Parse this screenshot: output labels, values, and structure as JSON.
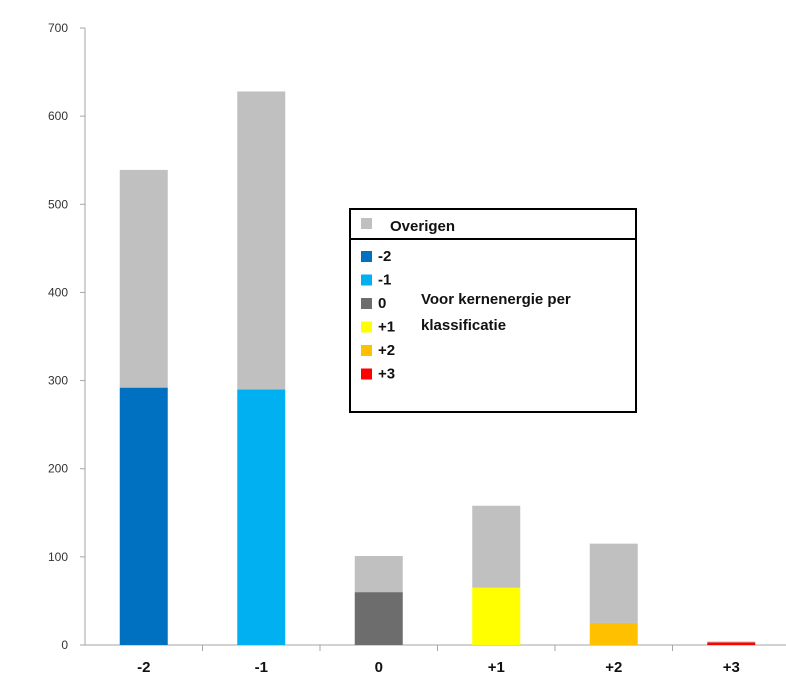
{
  "chart_data": {
    "type": "bar",
    "stacked": true,
    "categories": [
      "-2",
      "-1",
      "0",
      "+1",
      "+2",
      "+3"
    ],
    "ylim": [
      0,
      700
    ],
    "yticks": [
      "0",
      "100",
      "200",
      "300",
      "400",
      "500",
      "600",
      "700"
    ],
    "grid": false,
    "series": [
      {
        "name": "",
        "values": [
          292,
          290,
          60,
          65,
          25,
          3
        ],
        "colors": [
          "#0070c0",
          "#00b0f0",
          "#6d6d6d",
          "#ffff00",
          "#ffc000",
          "#ff0000"
        ]
      },
      {
        "name": "Overigen",
        "values": [
          247,
          338,
          41,
          93,
          90,
          1
        ],
        "color": "#c0c0c0"
      }
    ],
    "legend": {
      "placement": "center-right",
      "header": {
        "label": "Overigen",
        "color": "#c0c0c0"
      },
      "items": [
        {
          "label": "-2",
          "color": "#0070c0"
        },
        {
          "label": "-1",
          "color": "#00b0f0"
        },
        {
          "label": "0",
          "color": "#6d6d6d"
        },
        {
          "label": "+1",
          "color": "#ffff00"
        },
        {
          "label": "+2",
          "color": "#ffc000"
        },
        {
          "label": "+3",
          "color": "#ff0000"
        }
      ],
      "note_line1": "Voor kernenergie per",
      "note_line2": "klassificatie"
    }
  }
}
